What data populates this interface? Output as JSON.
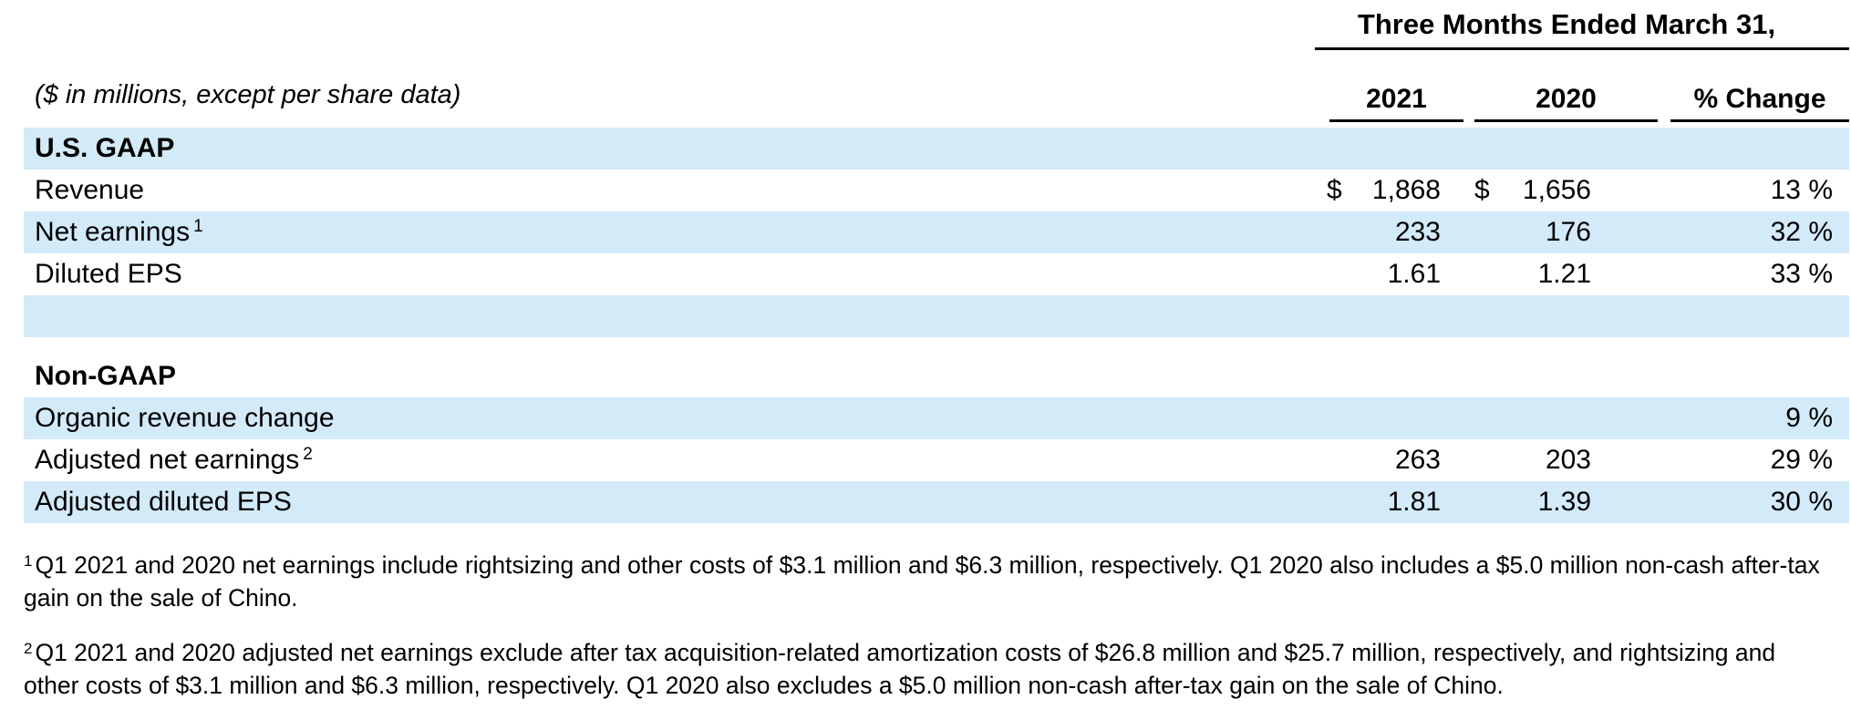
{
  "page": {
    "period_header": "Three Months Ended March 31,",
    "units_note": "($ in millions, except per share data)",
    "currency_symbol": "$",
    "columns": {
      "y2021": "2021",
      "y2020": "2020",
      "change": "% Change"
    }
  },
  "gaap": {
    "title": "U.S. GAAP",
    "revenue": {
      "label": "Revenue",
      "v2021": "1,868",
      "v2020": "1,656",
      "change": "13 %"
    },
    "net_earnings": {
      "label": "Net earnings",
      "sup": "1",
      "v2021": "233",
      "v2020": "176",
      "change": "32 %"
    },
    "diluted_eps": {
      "label": "Diluted EPS",
      "v2021": "1.61",
      "v2020": "1.21",
      "change": "33 %"
    }
  },
  "non_gaap": {
    "title": "Non-GAAP",
    "organic": {
      "label": "Organic revenue change",
      "v2021": "",
      "v2020": "",
      "change": "9 %"
    },
    "adj_net_earnings": {
      "label": "Adjusted net earnings",
      "sup": "2",
      "v2021": "263",
      "v2020": "203",
      "change": "29 %"
    },
    "adj_diluted_eps": {
      "label": "Adjusted diluted EPS",
      "v2021": "1.81",
      "v2020": "1.39",
      "change": "30 %"
    }
  },
  "footnotes": {
    "fn1": {
      "marker": "1",
      "text": "Q1 2021 and 2020 net earnings include rightsizing and other costs of $3.1 million and $6.3 million, respectively. Q1 2020 also includes a $5.0 million non-cash after-tax gain on the sale of Chino."
    },
    "fn2": {
      "marker": "2",
      "text": "Q1 2021 and 2020 adjusted net earnings exclude after tax acquisition-related amortization costs of $26.8 million and $25.7 million, respectively, and rightsizing and other costs of $3.1 million and $6.3 million, respectively. Q1 2020 also excludes a $5.0 million non-cash after-tax gain on the sale of Chino."
    }
  },
  "colors": {
    "row_highlight": "#d3eaf8",
    "text": "#000000",
    "rule": "#000000"
  }
}
